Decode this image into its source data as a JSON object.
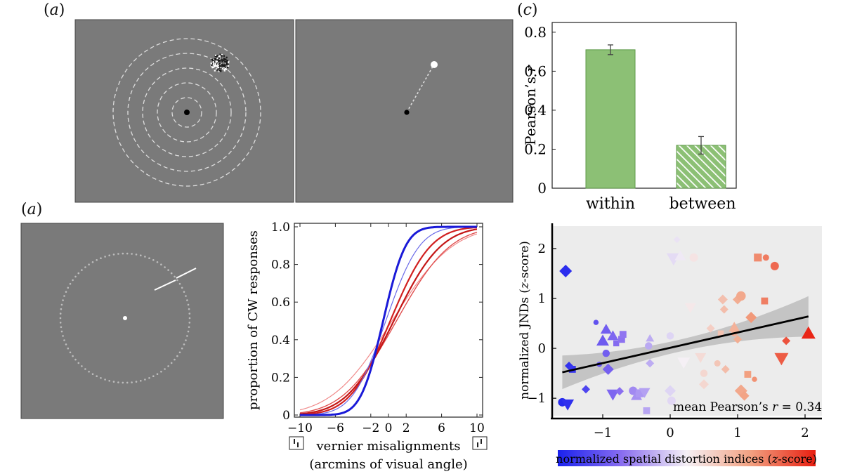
{
  "panel_labels": {
    "a_top": "a",
    "a_bottom": "a",
    "c": "c"
  },
  "stimulus": {
    "gray": "#7a7a7a",
    "ring_color": "#dddddd",
    "ring_count": 5,
    "fixation_color": "#000000"
  },
  "chart_data": [
    {
      "id": "bar-c",
      "type": "bar",
      "categories": [
        "within",
        "between"
      ],
      "values": [
        0.71,
        0.22
      ],
      "errors": [
        0.025,
        0.045
      ],
      "ylabel": "Pearson’s r",
      "ylim": [
        0,
        0.85
      ],
      "yticks": [
        0,
        0.2,
        0.4,
        0.6,
        0.8
      ],
      "ytick_labels": [
        "0",
        "0.2",
        "0.4",
        "0.6",
        "0.8"
      ],
      "bar_color": "#8cc075",
      "bar_edge": "#5e9a48",
      "hatch_second": true
    },
    {
      "id": "psychometric",
      "type": "line",
      "ylabel": "proportion of CW responses",
      "xlabel": "vernier misalignments",
      "xlabel2": "(arcmins of visual angle)",
      "xlim": [
        -10,
        10
      ],
      "ylim": [
        0,
        1.0
      ],
      "xticks": [
        -10,
        -6,
        -2,
        0,
        2,
        6,
        10
      ],
      "xtick_labels": [
        "−10",
        "−6",
        "−2",
        "0",
        "2",
        "6",
        "10"
      ],
      "yticks": [
        0,
        0.2,
        0.4,
        0.6,
        0.8,
        1.0
      ],
      "ytick_labels": [
        "0",
        "0.2",
        "0.4",
        "0.6",
        "0.8",
        "1.0"
      ],
      "series": [
        {
          "name": "blue-bold",
          "color": "#1a1ad8",
          "width": 3,
          "mu": -0.6,
          "sigma": 2.0
        },
        {
          "name": "blue-thin",
          "color": "#6a6ae8",
          "width": 1.2,
          "mu": -0.3,
          "sigma": 3.0
        },
        {
          "name": "red-1",
          "color": "#d12020",
          "width": 2.2,
          "mu": 0.2,
          "sigma": 3.6
        },
        {
          "name": "red-2",
          "color": "#c41616",
          "width": 2.2,
          "mu": 0.6,
          "sigma": 4.2
        },
        {
          "name": "red-3",
          "color": "#e05050",
          "width": 1.4,
          "mu": 0.9,
          "sigma": 4.8
        },
        {
          "name": "red-4",
          "color": "#f08a8a",
          "width": 1.2,
          "mu": 0.4,
          "sigma": 5.4
        }
      ]
    },
    {
      "id": "scatter",
      "type": "scatter",
      "ylabel": "normalized JNDs (z-score)",
      "ylabel_parts": [
        "normalized JNDs (",
        "z",
        "-score)"
      ],
      "xlim": [
        -1.75,
        2.25
      ],
      "ylim": [
        -1.35,
        2.45
      ],
      "xticks": [
        -1,
        0,
        1,
        2
      ],
      "xtick_labels": [
        "−1",
        "0",
        "1",
        "2"
      ],
      "yticks": [
        -1,
        0,
        1,
        2
      ],
      "ytick_labels": [
        "−1",
        "0",
        "1",
        "2"
      ],
      "annotation": "mean Pearson’s r = 0.34",
      "annotation_parts": [
        "mean Pearson’s ",
        "r",
        " = 0.34"
      ],
      "fit_line": {
        "x": [
          -1.6,
          2.05
        ],
        "y": [
          -0.48,
          0.64
        ]
      },
      "colorbar_label_parts": [
        "normalized spatial distortion indices (",
        "z",
        "-score)"
      ],
      "points": [
        {
          "x": -1.55,
          "y": 1.55,
          "shape": "diamond",
          "size": 9
        },
        {
          "x": -1.6,
          "y": -1.08,
          "shape": "circle",
          "size": 8
        },
        {
          "x": -1.52,
          "y": -1.12,
          "shape": "tri-down",
          "size": 9
        },
        {
          "x": -1.5,
          "y": -0.35,
          "shape": "diamond",
          "size": 6
        },
        {
          "x": -1.45,
          "y": -0.42,
          "shape": "square",
          "size": 7
        },
        {
          "x": -1.25,
          "y": -0.82,
          "shape": "diamond",
          "size": 6
        },
        {
          "x": -1.1,
          "y": 0.52,
          "shape": "circle",
          "size": 5
        },
        {
          "x": -1.05,
          "y": -0.32,
          "shape": "circle",
          "size": 5
        },
        {
          "x": -1.0,
          "y": 0.15,
          "shape": "tri-up",
          "size": 9
        },
        {
          "x": -0.95,
          "y": 0.38,
          "shape": "tri-up",
          "size": 8
        },
        {
          "x": -0.95,
          "y": -0.1,
          "shape": "circle",
          "size": 7
        },
        {
          "x": -0.92,
          "y": -0.42,
          "shape": "diamond",
          "size": 8
        },
        {
          "x": -0.85,
          "y": 0.25,
          "shape": "tri-up",
          "size": 8
        },
        {
          "x": -0.8,
          "y": 0.1,
          "shape": "square",
          "size": 6
        },
        {
          "x": -0.72,
          "y": 0.18,
          "shape": "square",
          "size": 7
        },
        {
          "x": -0.7,
          "y": 0.28,
          "shape": "square",
          "size": 7
        },
        {
          "x": -0.85,
          "y": -0.92,
          "shape": "tri-down",
          "size": 9
        },
        {
          "x": -0.75,
          "y": -0.86,
          "shape": "diamond",
          "size": 6
        },
        {
          "x": -0.55,
          "y": -0.85,
          "shape": "circle",
          "size": 8
        },
        {
          "x": -0.5,
          "y": -0.95,
          "shape": "tri-up",
          "size": 8
        },
        {
          "x": -0.45,
          "y": -0.9,
          "shape": "square",
          "size": 8
        },
        {
          "x": -0.38,
          "y": -0.88,
          "shape": "tri-down",
          "size": 8
        },
        {
          "x": -0.32,
          "y": 0.05,
          "shape": "circle",
          "size": 7
        },
        {
          "x": -0.3,
          "y": -0.3,
          "shape": "diamond",
          "size": 6
        },
        {
          "x": -0.35,
          "y": -1.25,
          "shape": "square",
          "size": 7
        },
        {
          "x": -0.3,
          "y": 0.2,
          "shape": "tri-up",
          "size": 6
        },
        {
          "x": 0.0,
          "y": 0.25,
          "shape": "circle",
          "size": 7
        },
        {
          "x": 0.05,
          "y": 1.8,
          "shape": "tri-down",
          "size": 10
        },
        {
          "x": 0.1,
          "y": 2.18,
          "shape": "diamond",
          "size": 5
        },
        {
          "x": 0.15,
          "y": 1.85,
          "shape": "tri-up",
          "size": 8
        },
        {
          "x": 0.0,
          "y": -0.85,
          "shape": "diamond",
          "size": 8
        },
        {
          "x": 0.02,
          "y": -1.05,
          "shape": "circle",
          "size": 8
        },
        {
          "x": 0.2,
          "y": -0.28,
          "shape": "tri-down",
          "size": 9
        },
        {
          "x": 0.35,
          "y": 1.82,
          "shape": "circle",
          "size": 8
        },
        {
          "x": 0.3,
          "y": 0.82,
          "shape": "tri-down",
          "size": 8
        },
        {
          "x": 0.45,
          "y": -0.18,
          "shape": "tri-down",
          "size": 8
        },
        {
          "x": 0.5,
          "y": -0.5,
          "shape": "circle",
          "size": 7
        },
        {
          "x": 0.5,
          "y": -0.72,
          "shape": "diamond",
          "size": 7
        },
        {
          "x": 0.6,
          "y": 0.4,
          "shape": "diamond",
          "size": 6
        },
        {
          "x": 0.7,
          "y": -0.3,
          "shape": "circle",
          "size": 6
        },
        {
          "x": 0.75,
          "y": 0.3,
          "shape": "square",
          "size": 6
        },
        {
          "x": 0.78,
          "y": 0.98,
          "shape": "diamond",
          "size": 7
        },
        {
          "x": 0.8,
          "y": 0.78,
          "shape": "diamond",
          "size": 6
        },
        {
          "x": 0.82,
          "y": -0.42,
          "shape": "diamond",
          "size": 6
        },
        {
          "x": 0.95,
          "y": 0.42,
          "shape": "tri-up",
          "size": 8
        },
        {
          "x": 0.95,
          "y": 0.3,
          "shape": "circle",
          "size": 6
        },
        {
          "x": 1.0,
          "y": 0.98,
          "shape": "diamond",
          "size": 7
        },
        {
          "x": 1.05,
          "y": 1.05,
          "shape": "circle",
          "size": 9
        },
        {
          "x": 1.0,
          "y": 0.18,
          "shape": "diamond",
          "size": 6
        },
        {
          "x": 1.05,
          "y": -0.85,
          "shape": "diamond",
          "size": 9
        },
        {
          "x": 1.1,
          "y": -0.95,
          "shape": "diamond",
          "size": 7
        },
        {
          "x": 1.15,
          "y": -0.52,
          "shape": "square",
          "size": 7
        },
        {
          "x": 1.25,
          "y": -0.62,
          "shape": "circle",
          "size": 5
        },
        {
          "x": 1.2,
          "y": 0.62,
          "shape": "diamond",
          "size": 8
        },
        {
          "x": 1.3,
          "y": 1.82,
          "shape": "square",
          "size": 8
        },
        {
          "x": 1.42,
          "y": 1.82,
          "shape": "circle",
          "size": 6
        },
        {
          "x": 1.4,
          "y": 0.95,
          "shape": "square",
          "size": 7
        },
        {
          "x": 1.55,
          "y": 1.65,
          "shape": "circle",
          "size": 8
        },
        {
          "x": 1.65,
          "y": -0.2,
          "shape": "tri-down",
          "size": 10
        },
        {
          "x": 1.72,
          "y": 0.15,
          "shape": "diamond",
          "size": 6
        },
        {
          "x": 2.05,
          "y": 0.3,
          "shape": "tri-up",
          "size": 10
        }
      ]
    }
  ]
}
